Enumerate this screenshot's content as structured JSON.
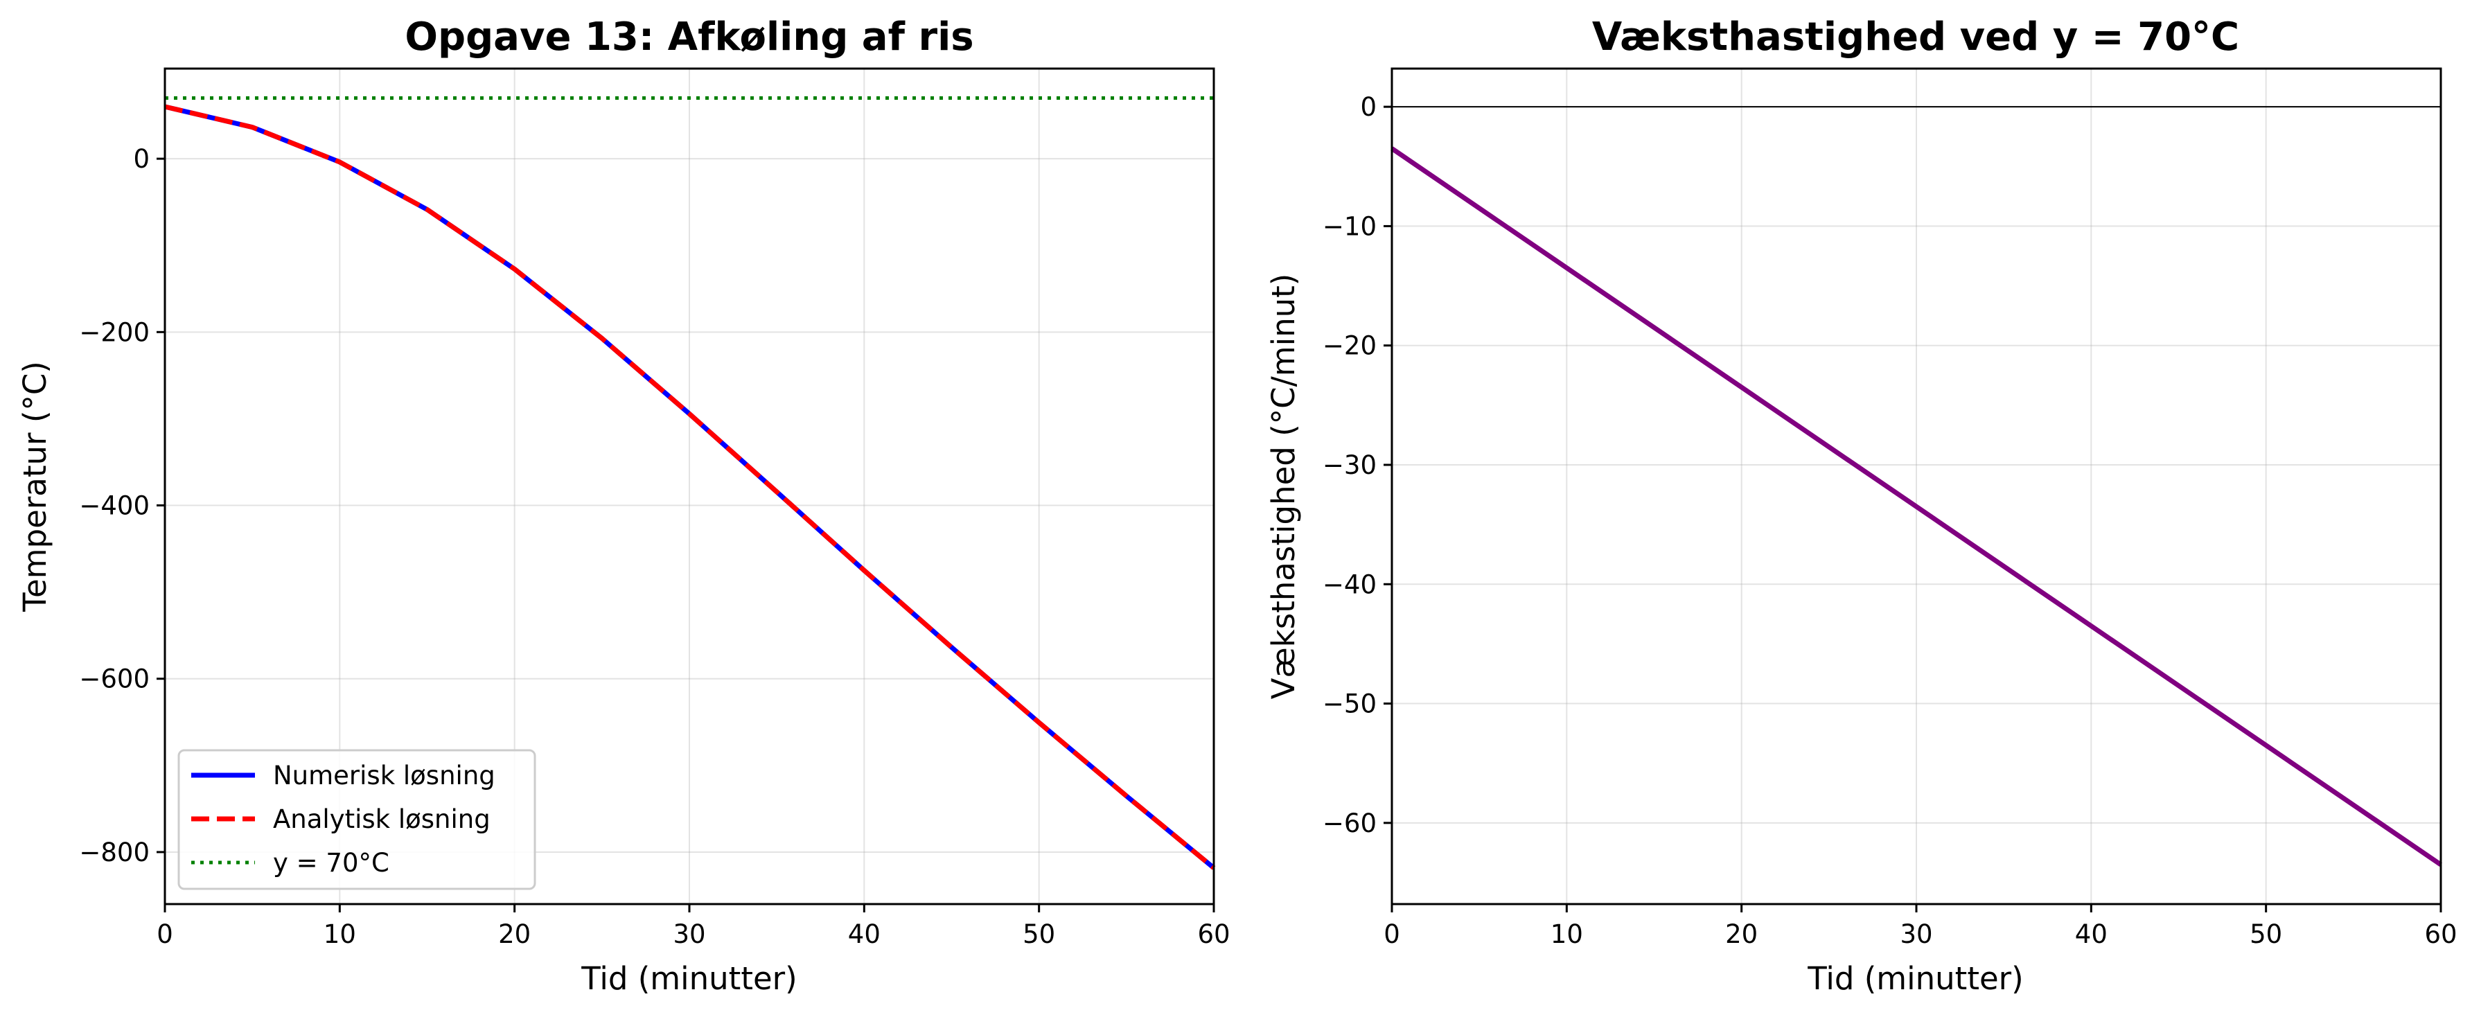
{
  "chart_data": [
    {
      "type": "line",
      "title": "Opgave 13: Afkøling af ris",
      "xlabel": "Tid (minutter)",
      "ylabel": "Temperatur (°C)",
      "xlim": [
        0,
        60
      ],
      "ylim": [
        -860,
        104
      ],
      "xticks": [
        0,
        10,
        20,
        30,
        40,
        50,
        60
      ],
      "yticks": [
        -800,
        -600,
        -400,
        -200,
        0
      ],
      "grid": true,
      "legend_position": "lower-left",
      "series": [
        {
          "name": "Numerisk løsning",
          "style": "solid",
          "color": "#0000ff",
          "x": [
            0,
            5,
            10,
            15,
            20,
            25,
            30,
            35,
            40,
            45,
            50,
            55,
            60
          ],
          "y": [
            60,
            36.4,
            -3.8,
            -58.6,
            -127.3,
            -207.3,
            -294.3,
            -384.4,
            -475.0,
            -563.8,
            -650.6,
            -735.2,
            -818.3
          ]
        },
        {
          "name": "Analytisk løsning",
          "style": "dashed",
          "color": "#ff0000",
          "x": [
            0,
            5,
            10,
            15,
            20,
            25,
            30,
            35,
            40,
            45,
            50,
            55,
            60
          ],
          "y": [
            60,
            36.4,
            -3.8,
            -58.6,
            -127.3,
            -207.3,
            -294.3,
            -384.4,
            -475.0,
            -563.8,
            -650.6,
            -735.2,
            -818.3
          ]
        },
        {
          "name": "y = 70°C",
          "style": "dotted",
          "color": "#008000",
          "x": [
            0,
            60
          ],
          "y": [
            70,
            70
          ]
        }
      ]
    },
    {
      "type": "line",
      "title": "Væksthastighed ved y = 70°C",
      "xlabel": "Tid (minutter)",
      "ylabel": "Væksthastighed (°C/minut)",
      "xlim": [
        0,
        60
      ],
      "ylim": [
        -66.8,
        3.2
      ],
      "xticks": [
        0,
        10,
        20,
        30,
        40,
        50,
        60
      ],
      "yticks": [
        -60,
        -50,
        -40,
        -30,
        -20,
        -10,
        0
      ],
      "grid": true,
      "hline": 0,
      "series": [
        {
          "style": "solid",
          "color": "#800080",
          "x": [
            0,
            60
          ],
          "y": [
            -3.5,
            -63.5
          ]
        }
      ]
    }
  ]
}
